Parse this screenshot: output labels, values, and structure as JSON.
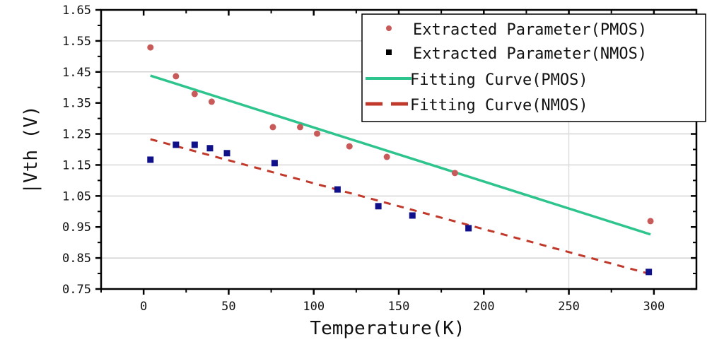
{
  "chart_data": {
    "type": "scatter",
    "title": "",
    "xlabel": "Temperature(K)",
    "ylabel": "|Vth (V)",
    "xlim": [
      -25,
      325
    ],
    "ylim": [
      0.75,
      1.65
    ],
    "xticks": [
      0,
      50,
      100,
      150,
      200,
      250,
      300
    ],
    "yticks": [
      "0.75",
      "0.85",
      "0.95",
      "1.05",
      "1.15",
      "1.25",
      "1.35",
      "1.45",
      "1.55",
      "1.65"
    ],
    "grid": {
      "horizontal": [
        0.85,
        1.05,
        1.15,
        1.25,
        1.45,
        1.55
      ],
      "vertical": [
        250
      ]
    },
    "legend_position": "top-right",
    "series": [
      {
        "name": "Extracted Parameter(PMOS)",
        "kind": "points",
        "marker": "circle",
        "color": "#c85a5a",
        "x": [
          4,
          19,
          30,
          40,
          76,
          92,
          102,
          121,
          143,
          183,
          298
        ],
        "y": [
          1.529,
          1.436,
          1.379,
          1.354,
          1.272,
          1.272,
          1.251,
          1.21,
          1.176,
          1.124,
          0.969
        ]
      },
      {
        "name": "Extracted Parameter(NMOS)",
        "kind": "points",
        "marker": "square",
        "color": "#10108a",
        "x": [
          4,
          19,
          30,
          39,
          49,
          77,
          114,
          138,
          158,
          191,
          297
        ],
        "y": [
          1.167,
          1.215,
          1.215,
          1.204,
          1.188,
          1.156,
          1.071,
          1.017,
          0.987,
          0.946,
          0.805
        ]
      },
      {
        "name": "Fitting Curve(PMOS)",
        "kind": "line",
        "style": "solid",
        "color": "#2ec48e",
        "x": [
          4,
          298
        ],
        "y": [
          1.438,
          0.926
        ]
      },
      {
        "name": "Fitting Curve(NMOS)",
        "kind": "line",
        "style": "dashed",
        "color": "#c0392b",
        "x": [
          4,
          298
        ],
        "y": [
          1.233,
          0.798
        ]
      }
    ]
  }
}
